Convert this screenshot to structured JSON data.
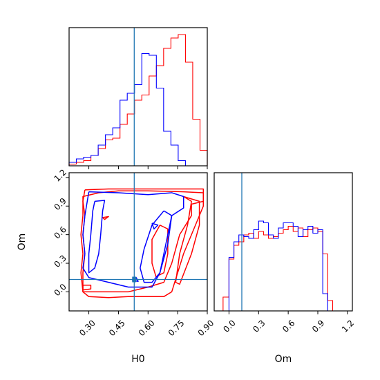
{
  "chart_data": {
    "type": "corner",
    "parameters": [
      "H0",
      "Om"
    ],
    "truth": {
      "H0": 0.53,
      "Om": 0.13
    },
    "series_colors": [
      "#ff0000",
      "#0000ff"
    ],
    "truth_color": "#1f77b4",
    "panels": [
      {
        "id": "H0-marginal",
        "type": "histogram",
        "param": "H0",
        "xlim": [
          0.2,
          0.9
        ],
        "bin_edges": [
          0.2,
          0.2368,
          0.2737,
          0.3105,
          0.3474,
          0.3842,
          0.4211,
          0.4579,
          0.4947,
          0.5316,
          0.5684,
          0.6053,
          0.6421,
          0.6789,
          0.7158,
          0.7526,
          0.7895,
          0.8263,
          0.8632,
          0.9
        ],
        "series": [
          {
            "color": "#ff0000",
            "values": [
              0.01,
              0.02,
              0.03,
              0.06,
              0.1,
              0.15,
              0.16,
              0.24,
              0.3,
              0.38,
              0.41,
              0.52,
              0.58,
              0.68,
              0.74,
              0.76,
              0.6,
              0.27,
              0.09
            ]
          },
          {
            "color": "#0000ff",
            "values": [
              0.02,
              0.04,
              0.05,
              0.06,
              0.12,
              0.18,
              0.22,
              0.38,
              0.42,
              0.47,
              0.65,
              0.64,
              0.45,
              0.2,
              0.12,
              0.03,
              0.0,
              0.0,
              0.0
            ]
          }
        ]
      },
      {
        "id": "H0-Om-contours",
        "type": "contour",
        "x_param": "H0",
        "y_param": "Om",
        "xlim": [
          0.2,
          0.9
        ],
        "ylim": [
          -0.2,
          1.25
        ],
        "xlabel": "H0",
        "ylabel": "Om",
        "yticks": [
          0.0,
          0.3,
          0.6,
          0.9,
          1.2
        ],
        "ytick_labels": [
          "0.0",
          "0.3",
          "0.6",
          "0.9",
          "1.2"
        ],
        "series": [
          {
            "color": "#ff0000",
            "contours": [
              [
                [
                  0.28,
                  1.07
                ],
                [
                  0.4,
                  1.08
                ],
                [
                  0.55,
                  1.08
                ],
                [
                  0.7,
                  1.08
                ],
                [
                  0.88,
                  1.08
                ],
                [
                  0.88,
                  0.95
                ],
                [
                  0.82,
                  0.92
                ],
                [
                  0.82,
                  0.8
                ],
                [
                  0.76,
                  0.6
                ],
                [
                  0.72,
                  0.3
                ],
                [
                  0.68,
                  0.1
                ],
                [
                  0.6,
                  0.05
                ],
                [
                  0.5,
                  0.0
                ],
                [
                  0.4,
                  0.0
                ],
                [
                  0.3,
                  0.0
                ],
                [
                  0.27,
                  0.0
                ],
                [
                  0.27,
                  0.2
                ],
                [
                  0.28,
                  0.4
                ],
                [
                  0.27,
                  0.6
                ],
                [
                  0.28,
                  0.8
                ],
                [
                  0.27,
                  0.95
                ],
                [
                  0.28,
                  1.07
                ]
              ],
              [
                [
                  0.6,
                  1.06
                ],
                [
                  0.78,
                  1.05
                ],
                [
                  0.88,
                  1.04
                ],
                [
                  0.88,
                  0.9
                ],
                [
                  0.84,
                  0.7
                ],
                [
                  0.78,
                  0.4
                ],
                [
                  0.72,
                  0.0
                ],
                [
                  0.68,
                  -0.05
                ],
                [
                  0.6,
                  -0.05
                ],
                [
                  0.5,
                  -0.05
                ],
                [
                  0.4,
                  -0.06
                ],
                [
                  0.3,
                  -0.05
                ],
                [
                  0.27,
                  0.0
                ],
                [
                  0.26,
                  0.2
                ],
                [
                  0.27,
                  0.4
                ],
                [
                  0.26,
                  0.6
                ],
                [
                  0.27,
                  0.8
                ],
                [
                  0.27,
                  1.0
                ],
                [
                  0.35,
                  1.04
                ],
                [
                  0.45,
                  1.06
                ],
                [
                  0.6,
                  1.06
                ]
              ],
              [
                [
                  0.78,
                  1.0
                ],
                [
                  0.82,
                  0.95
                ],
                [
                  0.8,
                  0.7
                ],
                [
                  0.76,
                  0.4
                ],
                [
                  0.74,
                  0.1
                ],
                [
                  0.76,
                  0.08
                ],
                [
                  0.82,
                  0.4
                ],
                [
                  0.86,
                  0.7
                ],
                [
                  0.86,
                  0.95
                ],
                [
                  0.78,
                  1.0
                ]
              ],
              [
                [
                  0.66,
                  0.7
                ],
                [
                  0.7,
                  0.66
                ],
                [
                  0.7,
                  0.4
                ],
                [
                  0.68,
                  0.2
                ],
                [
                  0.64,
                  0.16
                ],
                [
                  0.62,
                  0.3
                ],
                [
                  0.62,
                  0.55
                ],
                [
                  0.66,
                  0.7
                ]
              ],
              [
                [
                  0.27,
                  0.02
                ],
                [
                  0.31,
                  0.03
                ],
                [
                  0.31,
                  0.07
                ],
                [
                  0.27,
                  0.07
                ],
                [
                  0.27,
                  0.02
                ]
              ],
              [
                [
                  0.37,
                  0.78
                ],
                [
                  0.4,
                  0.79
                ],
                [
                  0.38,
                  0.76
                ],
                [
                  0.37,
                  0.78
                ]
              ]
            ]
          },
          {
            "color": "#0000ff",
            "contours": [
              [
                [
                  0.3,
                  1.05
                ],
                [
                  0.45,
                  1.04
                ],
                [
                  0.6,
                  1.02
                ],
                [
                  0.72,
                  1.04
                ],
                [
                  0.78,
                  1.0
                ],
                [
                  0.78,
                  0.88
                ],
                [
                  0.72,
                  0.8
                ],
                [
                  0.7,
                  0.5
                ],
                [
                  0.66,
                  0.2
                ],
                [
                  0.62,
                  0.05
                ],
                [
                  0.55,
                  0.05
                ],
                [
                  0.5,
                  0.05
                ],
                [
                  0.4,
                  0.1
                ],
                [
                  0.3,
                  0.15
                ],
                [
                  0.27,
                  0.25
                ],
                [
                  0.28,
                  0.4
                ],
                [
                  0.27,
                  0.6
                ],
                [
                  0.28,
                  0.8
                ],
                [
                  0.3,
                  1.05
                ]
              ],
              [
                [
                  0.33,
                  0.95
                ],
                [
                  0.38,
                  0.96
                ],
                [
                  0.37,
                  0.85
                ],
                [
                  0.36,
                  0.6
                ],
                [
                  0.35,
                  0.4
                ],
                [
                  0.33,
                  0.25
                ],
                [
                  0.3,
                  0.2
                ],
                [
                  0.3,
                  0.4
                ],
                [
                  0.31,
                  0.6
                ],
                [
                  0.32,
                  0.85
                ],
                [
                  0.33,
                  0.95
                ]
              ],
              [
                [
                  0.68,
                  0.85
                ],
                [
                  0.72,
                  0.8
                ],
                [
                  0.7,
                  0.6
                ],
                [
                  0.68,
                  0.4
                ],
                [
                  0.66,
                  0.2
                ],
                [
                  0.62,
                  0.1
                ],
                [
                  0.58,
                  0.1
                ],
                [
                  0.56,
                  0.25
                ],
                [
                  0.58,
                  0.45
                ],
                [
                  0.62,
                  0.7
                ],
                [
                  0.68,
                  0.85
                ]
              ],
              [
                [
                  0.62,
                  0.72
                ],
                [
                  0.65,
                  0.7
                ],
                [
                  0.63,
                  0.66
                ],
                [
                  0.62,
                  0.72
                ]
              ],
              [
                [
                  0.52,
                  0.12
                ],
                [
                  0.54,
                  0.15
                ],
                [
                  0.55,
                  0.11
                ],
                [
                  0.52,
                  0.12
                ]
              ]
            ]
          }
        ]
      },
      {
        "id": "Om-marginal",
        "type": "histogram",
        "param": "Om",
        "xlim": [
          -0.15,
          1.25
        ],
        "xlabel": "Om",
        "xticks": [
          0.0,
          0.3,
          0.6,
          0.9,
          1.2
        ],
        "xtick_labels": [
          "0.0",
          "0.3",
          "0.6",
          "0.9",
          "1.2"
        ],
        "bin_edges": [
          -0.06,
          0.0,
          0.05,
          0.1,
          0.15,
          0.2,
          0.25,
          0.3,
          0.35,
          0.4,
          0.45,
          0.5,
          0.55,
          0.6,
          0.65,
          0.7,
          0.75,
          0.8,
          0.85,
          0.9,
          0.95,
          1.0,
          1.05,
          1.09
        ],
        "series": [
          {
            "color": "#ff0000",
            "values": [
              0.08,
              0.3,
              0.38,
              0.4,
              0.44,
              0.45,
              0.42,
              0.46,
              0.44,
              0.42,
              0.43,
              0.45,
              0.47,
              0.49,
              0.46,
              0.48,
              0.43,
              0.47,
              0.48,
              0.46,
              0.33,
              0.06,
              0.0
            ]
          },
          {
            "color": "#0000ff",
            "values": [
              0.0,
              0.31,
              0.4,
              0.44,
              0.43,
              0.42,
              0.47,
              0.52,
              0.51,
              0.44,
              0.42,
              0.48,
              0.51,
              0.51,
              0.49,
              0.43,
              0.47,
              0.49,
              0.45,
              0.47,
              0.1,
              0.0,
              0.0
            ]
          }
        ]
      }
    ],
    "h0_xticks": [
      0.3,
      0.45,
      0.6,
      0.75,
      0.9
    ],
    "h0_xtick_labels": [
      "0.30",
      "0.45",
      "0.60",
      "0.75",
      "0.90"
    ],
    "hist_ylim": [
      0,
      0.8
    ]
  }
}
